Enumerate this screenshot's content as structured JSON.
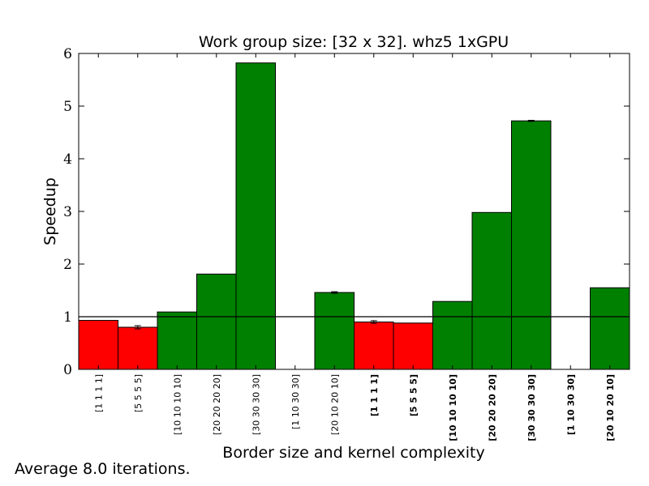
{
  "chart_data": {
    "type": "bar",
    "title": "Work group size: [32 x 32]. whz5 1xGPU",
    "xlabel": "Border size and kernel complexity",
    "ylabel": "Speedup",
    "ylim": [
      0,
      6
    ],
    "yticks": [
      "0",
      "1",
      "2",
      "3",
      "4",
      "5",
      "6"
    ],
    "reference_line": 1,
    "grid": false,
    "categories": [
      "[1 1 1 1]",
      "[5 5 5 5]",
      "[10 10 10 10]",
      "[20 20 20 20]",
      "[30 30 30 30]",
      "[1 10 30 30]",
      "[20 10 20 10]",
      "[1 1 1 1]",
      "[5 5 5 5]",
      "[10 10 10 10]",
      "[20 20 20 20]",
      "[30 30 30 30]",
      "[1 10 30 30]",
      "[20 10 20 10]"
    ],
    "bold_labels": [
      false,
      false,
      false,
      false,
      false,
      false,
      false,
      true,
      true,
      true,
      true,
      true,
      true,
      true
    ],
    "values": [
      0.93,
      0.8,
      1.09,
      1.81,
      5.82,
      0.0,
      1.46,
      0.9,
      0.88,
      1.29,
      2.98,
      4.72,
      0.0,
      1.55
    ],
    "errors": [
      0.0,
      0.03,
      0.0,
      0.0,
      0.0,
      0.0,
      0.015,
      0.025,
      0.0,
      0.0,
      0.0,
      0.01,
      0.0,
      0.0
    ],
    "below_color": "#ff0000",
    "above_color": "#008000"
  },
  "footer": {
    "note": "Average 8.0 iterations."
  }
}
